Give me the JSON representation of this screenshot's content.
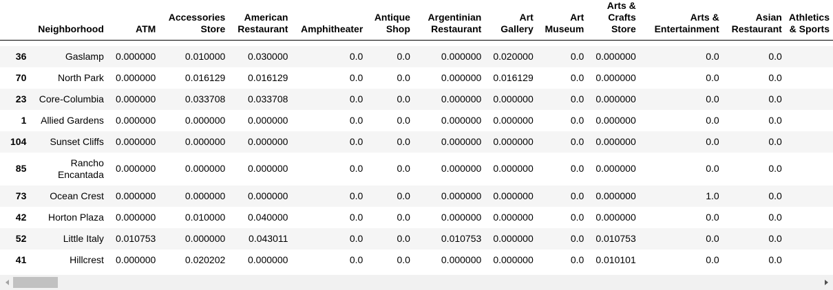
{
  "table": {
    "columns": [
      "",
      "Neighborhood",
      "ATM",
      "Accessories Store",
      "American Restaurant",
      "Amphitheater",
      "Antique Shop",
      "Argentinian Restaurant",
      "Art Gallery",
      "Art Museum",
      "Arts & Crafts Store",
      "Arts & Entertainment",
      "Asian Restaurant",
      "Athletics & Sports"
    ],
    "rows": [
      [
        "36",
        "Gaslamp",
        "0.000000",
        "0.010000",
        "0.030000",
        "0.0",
        "0.0",
        "0.000000",
        "0.020000",
        "0.0",
        "0.000000",
        "0.0",
        "0.0",
        ""
      ],
      [
        "70",
        "North Park",
        "0.000000",
        "0.016129",
        "0.016129",
        "0.0",
        "0.0",
        "0.000000",
        "0.016129",
        "0.0",
        "0.000000",
        "0.0",
        "0.0",
        ""
      ],
      [
        "23",
        "Core-Columbia",
        "0.000000",
        "0.033708",
        "0.033708",
        "0.0",
        "0.0",
        "0.000000",
        "0.000000",
        "0.0",
        "0.000000",
        "0.0",
        "0.0",
        ""
      ],
      [
        "1",
        "Allied Gardens",
        "0.000000",
        "0.000000",
        "0.000000",
        "0.0",
        "0.0",
        "0.000000",
        "0.000000",
        "0.0",
        "0.000000",
        "0.0",
        "0.0",
        ""
      ],
      [
        "104",
        "Sunset Cliffs",
        "0.000000",
        "0.000000",
        "0.000000",
        "0.0",
        "0.0",
        "0.000000",
        "0.000000",
        "0.0",
        "0.000000",
        "0.0",
        "0.0",
        ""
      ],
      [
        "85",
        "Rancho Encantada",
        "0.000000",
        "0.000000",
        "0.000000",
        "0.0",
        "0.0",
        "0.000000",
        "0.000000",
        "0.0",
        "0.000000",
        "0.0",
        "0.0",
        ""
      ],
      [
        "73",
        "Ocean Crest",
        "0.000000",
        "0.000000",
        "0.000000",
        "0.0",
        "0.0",
        "0.000000",
        "0.000000",
        "0.0",
        "0.000000",
        "1.0",
        "0.0",
        ""
      ],
      [
        "42",
        "Horton Plaza",
        "0.000000",
        "0.010000",
        "0.040000",
        "0.0",
        "0.0",
        "0.000000",
        "0.000000",
        "0.0",
        "0.000000",
        "0.0",
        "0.0",
        ""
      ],
      [
        "52",
        "Little Italy",
        "0.010753",
        "0.000000",
        "0.043011",
        "0.0",
        "0.0",
        "0.010753",
        "0.000000",
        "0.0",
        "0.010753",
        "0.0",
        "0.0",
        ""
      ],
      [
        "41",
        "Hillcrest",
        "0.000000",
        "0.020202",
        "0.000000",
        "0.0",
        "0.0",
        "0.000000",
        "0.000000",
        "0.0",
        "0.010101",
        "0.0",
        "0.0",
        ""
      ]
    ]
  },
  "scrollbar": {
    "left_icon": "scroll-left-arrow-icon",
    "right_icon": "scroll-right-arrow-icon",
    "colors": {
      "track": "#f1f1f1",
      "thumb": "#c1c1c1"
    }
  },
  "colors": {
    "stripe": "#f5f5f5",
    "text": "#000000"
  }
}
